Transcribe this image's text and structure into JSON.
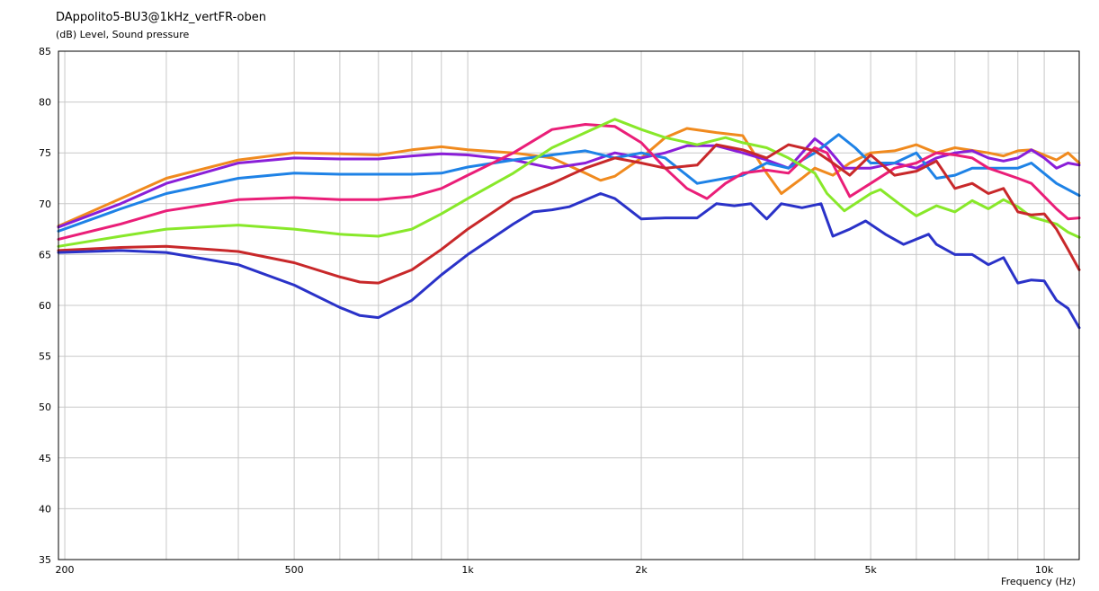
{
  "chart_data": {
    "type": "line",
    "title": "DAppolito5-BU3@1kHz_vertFR-oben",
    "ylabel": "(dB)  Level, Sound pressure",
    "xlabel": "Frequency  (Hz)",
    "xscale": "log",
    "xlim": [
      195,
      11500
    ],
    "ylim": [
      35,
      85
    ],
    "yticks": [
      35,
      40,
      45,
      50,
      55,
      60,
      65,
      70,
      75,
      80,
      85
    ],
    "xtick_labels": [
      {
        "value": 200,
        "label": "200"
      },
      {
        "value": 500,
        "label": "500"
      },
      {
        "value": 1000,
        "label": "1k"
      },
      {
        "value": 2000,
        "label": "2k"
      },
      {
        "value": 5000,
        "label": "5k"
      },
      {
        "value": 10000,
        "label": "10k"
      }
    ],
    "grid": true,
    "legend": "none",
    "series": [
      {
        "color": "#f08a1e",
        "points": [
          [
            195,
            67.8
          ],
          [
            250,
            70.5
          ],
          [
            300,
            72.5
          ],
          [
            400,
            74.3
          ],
          [
            500,
            75.0
          ],
          [
            600,
            74.9
          ],
          [
            700,
            74.8
          ],
          [
            800,
            75.3
          ],
          [
            900,
            75.6
          ],
          [
            1000,
            75.3
          ],
          [
            1200,
            75.0
          ],
          [
            1400,
            74.5
          ],
          [
            1600,
            73.0
          ],
          [
            1700,
            72.3
          ],
          [
            1800,
            72.7
          ],
          [
            2000,
            74.5
          ],
          [
            2200,
            76.5
          ],
          [
            2400,
            77.4
          ],
          [
            2700,
            77.0
          ],
          [
            3000,
            76.7
          ],
          [
            3300,
            73.0
          ],
          [
            3500,
            71.0
          ],
          [
            3800,
            72.5
          ],
          [
            4000,
            73.5
          ],
          [
            4300,
            72.8
          ],
          [
            4600,
            74.0
          ],
          [
            5000,
            75.0
          ],
          [
            5500,
            75.2
          ],
          [
            6000,
            75.8
          ],
          [
            6500,
            75.0
          ],
          [
            7000,
            75.5
          ],
          [
            8000,
            75.0
          ],
          [
            8500,
            74.7
          ],
          [
            9000,
            75.2
          ],
          [
            9500,
            75.3
          ],
          [
            10500,
            74.3
          ],
          [
            11000,
            75.0
          ],
          [
            11500,
            74.0
          ]
        ]
      },
      {
        "color": "#8a1ed8",
        "points": [
          [
            195,
            67.7
          ],
          [
            250,
            70.0
          ],
          [
            300,
            72.0
          ],
          [
            400,
            74.0
          ],
          [
            500,
            74.5
          ],
          [
            600,
            74.4
          ],
          [
            700,
            74.4
          ],
          [
            800,
            74.7
          ],
          [
            900,
            74.9
          ],
          [
            1000,
            74.8
          ],
          [
            1200,
            74.3
          ],
          [
            1400,
            73.5
          ],
          [
            1600,
            74.0
          ],
          [
            1800,
            75.0
          ],
          [
            2000,
            74.5
          ],
          [
            2200,
            75.0
          ],
          [
            2400,
            75.7
          ],
          [
            2700,
            75.7
          ],
          [
            3000,
            75.0
          ],
          [
            3300,
            74.3
          ],
          [
            3600,
            73.5
          ],
          [
            4000,
            76.4
          ],
          [
            4200,
            75.5
          ],
          [
            4500,
            73.5
          ],
          [
            5000,
            73.5
          ],
          [
            5500,
            74.0
          ],
          [
            6000,
            73.5
          ],
          [
            6500,
            74.5
          ],
          [
            7000,
            75.0
          ],
          [
            7500,
            75.2
          ],
          [
            8000,
            74.5
          ],
          [
            8500,
            74.2
          ],
          [
            9000,
            74.5
          ],
          [
            9500,
            75.3
          ],
          [
            10000,
            74.5
          ],
          [
            10500,
            73.5
          ],
          [
            11000,
            74.0
          ],
          [
            11500,
            73.8
          ]
        ]
      },
      {
        "color": "#1e82e6",
        "points": [
          [
            195,
            67.3
          ],
          [
            250,
            69.5
          ],
          [
            300,
            71.0
          ],
          [
            400,
            72.5
          ],
          [
            500,
            73.0
          ],
          [
            600,
            72.9
          ],
          [
            700,
            72.9
          ],
          [
            800,
            72.9
          ],
          [
            900,
            73.0
          ],
          [
            1000,
            73.6
          ],
          [
            1200,
            74.3
          ],
          [
            1400,
            74.8
          ],
          [
            1600,
            75.2
          ],
          [
            1800,
            74.5
          ],
          [
            2000,
            75.0
          ],
          [
            2200,
            74.5
          ],
          [
            2500,
            72.0
          ],
          [
            2800,
            72.5
          ],
          [
            3000,
            72.8
          ],
          [
            3300,
            74.0
          ],
          [
            3600,
            73.5
          ],
          [
            4000,
            75.0
          ],
          [
            4400,
            76.8
          ],
          [
            4700,
            75.5
          ],
          [
            5000,
            74.0
          ],
          [
            5500,
            74.0
          ],
          [
            6000,
            75.0
          ],
          [
            6500,
            72.5
          ],
          [
            7000,
            72.8
          ],
          [
            7500,
            73.5
          ],
          [
            8000,
            73.5
          ],
          [
            9000,
            73.5
          ],
          [
            9500,
            74.0
          ],
          [
            10500,
            72.0
          ],
          [
            11500,
            70.8
          ]
        ]
      },
      {
        "color": "#ea1e78",
        "points": [
          [
            195,
            66.5
          ],
          [
            250,
            68.0
          ],
          [
            300,
            69.3
          ],
          [
            400,
            70.4
          ],
          [
            500,
            70.6
          ],
          [
            600,
            70.4
          ],
          [
            700,
            70.4
          ],
          [
            800,
            70.7
          ],
          [
            900,
            71.5
          ],
          [
            1000,
            72.8
          ],
          [
            1200,
            75.0
          ],
          [
            1400,
            77.3
          ],
          [
            1600,
            77.8
          ],
          [
            1800,
            77.6
          ],
          [
            2000,
            76.0
          ],
          [
            2200,
            73.5
          ],
          [
            2400,
            71.5
          ],
          [
            2600,
            70.5
          ],
          [
            2800,
            72.0
          ],
          [
            3000,
            73.0
          ],
          [
            3300,
            73.3
          ],
          [
            3600,
            73.0
          ],
          [
            4000,
            75.5
          ],
          [
            4200,
            75.0
          ],
          [
            4600,
            70.7
          ],
          [
            5000,
            72.0
          ],
          [
            5500,
            73.5
          ],
          [
            6000,
            74.0
          ],
          [
            6500,
            75.0
          ],
          [
            7000,
            74.8
          ],
          [
            7500,
            74.5
          ],
          [
            8000,
            73.5
          ],
          [
            9000,
            72.5
          ],
          [
            9500,
            72.0
          ],
          [
            10500,
            69.5
          ],
          [
            11000,
            68.5
          ],
          [
            11500,
            68.6
          ]
        ]
      },
      {
        "color": "#88e82a",
        "points": [
          [
            195,
            65.8
          ],
          [
            250,
            66.8
          ],
          [
            300,
            67.5
          ],
          [
            400,
            67.9
          ],
          [
            500,
            67.5
          ],
          [
            600,
            67.0
          ],
          [
            700,
            66.8
          ],
          [
            800,
            67.5
          ],
          [
            900,
            69.0
          ],
          [
            1000,
            70.5
          ],
          [
            1200,
            73.0
          ],
          [
            1400,
            75.5
          ],
          [
            1600,
            77.0
          ],
          [
            1800,
            78.3
          ],
          [
            2000,
            77.3
          ],
          [
            2200,
            76.5
          ],
          [
            2500,
            75.8
          ],
          [
            2800,
            76.5
          ],
          [
            3000,
            76.0
          ],
          [
            3300,
            75.5
          ],
          [
            3600,
            74.5
          ],
          [
            4000,
            73.0
          ],
          [
            4200,
            71.0
          ],
          [
            4500,
            69.3
          ],
          [
            5000,
            71.0
          ],
          [
            5200,
            71.4
          ],
          [
            5600,
            70.0
          ],
          [
            6000,
            68.8
          ],
          [
            6500,
            69.8
          ],
          [
            7000,
            69.2
          ],
          [
            7500,
            70.3
          ],
          [
            8000,
            69.5
          ],
          [
            8500,
            70.4
          ],
          [
            9000,
            69.7
          ],
          [
            9500,
            68.7
          ],
          [
            10500,
            68.0
          ],
          [
            11000,
            67.2
          ],
          [
            11500,
            66.7
          ]
        ]
      },
      {
        "color": "#c8282a",
        "points": [
          [
            195,
            65.4
          ],
          [
            250,
            65.7
          ],
          [
            300,
            65.8
          ],
          [
            400,
            65.3
          ],
          [
            500,
            64.2
          ],
          [
            600,
            62.8
          ],
          [
            650,
            62.3
          ],
          [
            700,
            62.2
          ],
          [
            800,
            63.5
          ],
          [
            900,
            65.5
          ],
          [
            1000,
            67.5
          ],
          [
            1200,
            70.5
          ],
          [
            1400,
            72.0
          ],
          [
            1600,
            73.5
          ],
          [
            1800,
            74.5
          ],
          [
            2000,
            74.0
          ],
          [
            2200,
            73.5
          ],
          [
            2500,
            73.8
          ],
          [
            2700,
            75.8
          ],
          [
            3000,
            75.3
          ],
          [
            3300,
            74.5
          ],
          [
            3600,
            75.8
          ],
          [
            4000,
            75.2
          ],
          [
            4300,
            74.0
          ],
          [
            4600,
            72.8
          ],
          [
            5000,
            74.8
          ],
          [
            5500,
            72.8
          ],
          [
            6000,
            73.2
          ],
          [
            6500,
            74.2
          ],
          [
            7000,
            71.5
          ],
          [
            7500,
            72.0
          ],
          [
            8000,
            71.0
          ],
          [
            8500,
            71.5
          ],
          [
            9000,
            69.2
          ],
          [
            9500,
            68.9
          ],
          [
            10000,
            69.0
          ],
          [
            10500,
            67.5
          ],
          [
            11000,
            65.5
          ],
          [
            11500,
            63.5
          ]
        ]
      },
      {
        "color": "#2a32c8",
        "points": [
          [
            195,
            65.2
          ],
          [
            250,
            65.4
          ],
          [
            300,
            65.2
          ],
          [
            400,
            64.0
          ],
          [
            500,
            62.0
          ],
          [
            600,
            59.8
          ],
          [
            650,
            59.0
          ],
          [
            700,
            58.8
          ],
          [
            800,
            60.5
          ],
          [
            900,
            63.0
          ],
          [
            1000,
            65.0
          ],
          [
            1200,
            68.0
          ],
          [
            1300,
            69.2
          ],
          [
            1400,
            69.4
          ],
          [
            1500,
            69.7
          ],
          [
            1700,
            71.0
          ],
          [
            1800,
            70.5
          ],
          [
            2000,
            68.5
          ],
          [
            2200,
            68.6
          ],
          [
            2500,
            68.6
          ],
          [
            2700,
            70.0
          ],
          [
            2900,
            69.8
          ],
          [
            3100,
            70.0
          ],
          [
            3300,
            68.5
          ],
          [
            3500,
            70.0
          ],
          [
            3800,
            69.6
          ],
          [
            4100,
            70.0
          ],
          [
            4300,
            66.8
          ],
          [
            4600,
            67.5
          ],
          [
            4900,
            68.3
          ],
          [
            5300,
            67.0
          ],
          [
            5700,
            66.0
          ],
          [
            6300,
            67.0
          ],
          [
            6500,
            66.0
          ],
          [
            7000,
            65.0
          ],
          [
            7500,
            65.0
          ],
          [
            8000,
            64.0
          ],
          [
            8500,
            64.7
          ],
          [
            9000,
            62.2
          ],
          [
            9500,
            62.5
          ],
          [
            10000,
            62.4
          ],
          [
            10500,
            60.5
          ],
          [
            11000,
            59.7
          ],
          [
            11500,
            57.8
          ]
        ]
      }
    ]
  }
}
